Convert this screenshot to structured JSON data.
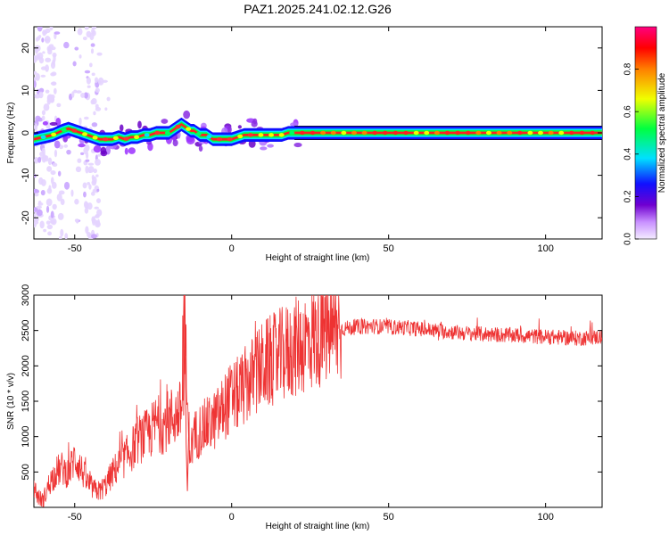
{
  "title": "PAZ1.2025.241.02.12.G26",
  "chart_data": [
    {
      "type": "heatmap",
      "xlabel": "Height of straight line (km)",
      "ylabel": "Frequency (Hz)",
      "xlim": [
        -63,
        118
      ],
      "ylim": [
        -25,
        25
      ],
      "xticks": [
        -50,
        0,
        50,
        100
      ],
      "yticks": [
        -20,
        -10,
        0,
        10,
        20
      ],
      "colorbar": {
        "label": "Normalized spectral amplitude",
        "range": [
          0,
          1
        ],
        "ticks": [
          "0.0",
          "0.2",
          "0.4",
          "0.6",
          "0.8"
        ],
        "colors": [
          "#f4ecff",
          "#c890ff",
          "#7000d0",
          "#1010ff",
          "#00e0ff",
          "#00ff40",
          "#f0ff00",
          "#ff8000",
          "#ff0000",
          "#ff0080",
          "#ff0090"
        ]
      },
      "ridge": {
        "x": [
          -63,
          -60,
          -57,
          -54,
          -52,
          -50,
          -48,
          -46,
          -44,
          -42,
          -40,
          -38,
          -36,
          -34,
          -32,
          -30,
          -28,
          -26,
          -24,
          -22,
          -20,
          -18,
          -17,
          -16,
          -15,
          -14,
          -13,
          -12,
          -10,
          -8,
          -6,
          -4,
          -2,
          0,
          2,
          4,
          6,
          8,
          10,
          12,
          14,
          16,
          18,
          20,
          30,
          40,
          50,
          60,
          70,
          80,
          90,
          100,
          110,
          118
        ],
        "freq": [
          -1.5,
          -1.0,
          -0.5,
          0.5,
          1.0,
          0.5,
          0.0,
          -0.5,
          -1.0,
          -1.5,
          -1.5,
          -1.5,
          -1.0,
          -1.5,
          -1.0,
          -1.0,
          -0.5,
          -0.5,
          0.0,
          0.0,
          0.0,
          1.0,
          1.5,
          2.0,
          1.5,
          1.0,
          0.5,
          0.5,
          -0.5,
          -0.5,
          -1.5,
          -1.5,
          -1.5,
          -1.5,
          -1.0,
          -0.5,
          -0.5,
          -0.5,
          -0.5,
          -0.5,
          -0.5,
          -0.5,
          0.0,
          0.0,
          0.0,
          0.0,
          0.0,
          0.0,
          0.0,
          0.0,
          0.0,
          0.0,
          0.0,
          0.0
        ]
      }
    },
    {
      "type": "line",
      "xlabel": "Height of straight line (km)",
      "ylabel": "SNR (10 * v/v)",
      "xlim": [
        -63,
        118
      ],
      "ylim": [
        0,
        3000
      ],
      "xticks": [
        -50,
        0,
        50,
        100
      ],
      "yticks": [
        500,
        1000,
        1500,
        2000,
        2500,
        3000
      ],
      "color": "#ee3333",
      "series": [
        {
          "name": "SNR",
          "x": [
            -63,
            -62,
            -61,
            -60,
            -58,
            -56,
            -54,
            -52,
            -50,
            -48,
            -46,
            -44,
            -42,
            -40,
            -38,
            -36,
            -34,
            -32,
            -30,
            -28,
            -26,
            -24,
            -22,
            -20,
            -18,
            -16,
            -15,
            -14,
            -13,
            -12,
            -10,
            -8,
            -6,
            -4,
            -2,
            0,
            2,
            4,
            6,
            8,
            10,
            12,
            14,
            16,
            18,
            20,
            22,
            24,
            26,
            28,
            30,
            32,
            34,
            36,
            40,
            45,
            50,
            55,
            60,
            65,
            70,
            75,
            80,
            85,
            90,
            95,
            100,
            105,
            110,
            115,
            118
          ],
          "y": [
            300,
            180,
            120,
            100,
            350,
            500,
            550,
            480,
            700,
            550,
            350,
            250,
            230,
            320,
            480,
            600,
            700,
            800,
            950,
            1000,
            1050,
            1200,
            1150,
            1250,
            1300,
            1350,
            2700,
            1200,
            800,
            1000,
            1100,
            1150,
            1200,
            1300,
            1450,
            1550,
            1600,
            1700,
            1800,
            1900,
            2000,
            2050,
            2100,
            2150,
            2200,
            2250,
            2300,
            2350,
            2400,
            2450,
            2480,
            2500,
            2520,
            2530,
            2550,
            2560,
            2550,
            2540,
            2520,
            2500,
            2480,
            2460,
            2450,
            2440,
            2430,
            2420,
            2410,
            2400,
            2390,
            2400,
            2410
          ]
        }
      ]
    }
  ]
}
